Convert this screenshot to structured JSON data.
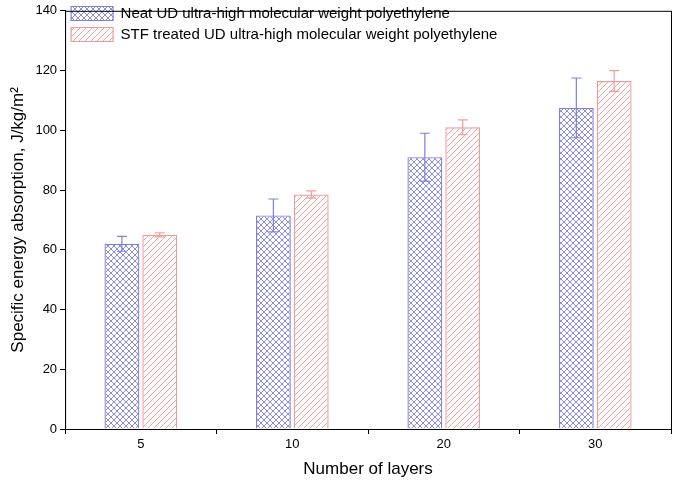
{
  "chart_data": {
    "type": "bar",
    "x_label": "Number of layers",
    "y_label": "Specific energy absorption, J/kg/m²",
    "categories": [
      5,
      10,
      20,
      30
    ],
    "series": [
      {
        "name": "Neat UD ultra-high molecular weight polyethylene",
        "color": "#7f7fe0",
        "values": [
          62,
          71.5,
          91,
          107.5
        ],
        "errors": [
          2.5,
          5.5,
          8,
          10
        ]
      },
      {
        "name": "STF treated UD ultra-high molecular weight polyethylene",
        "color": "#f29a9a",
        "values": [
          65,
          78.5,
          101,
          116.5
        ],
        "errors": [
          0.7,
          1.2,
          2.5,
          3.5
        ]
      }
    ],
    "ylim": [
      0,
      140
    ],
    "yticks": [
      0,
      20,
      40,
      60,
      80,
      100,
      120,
      140
    ],
    "grid": false,
    "legend": "upper left"
  }
}
